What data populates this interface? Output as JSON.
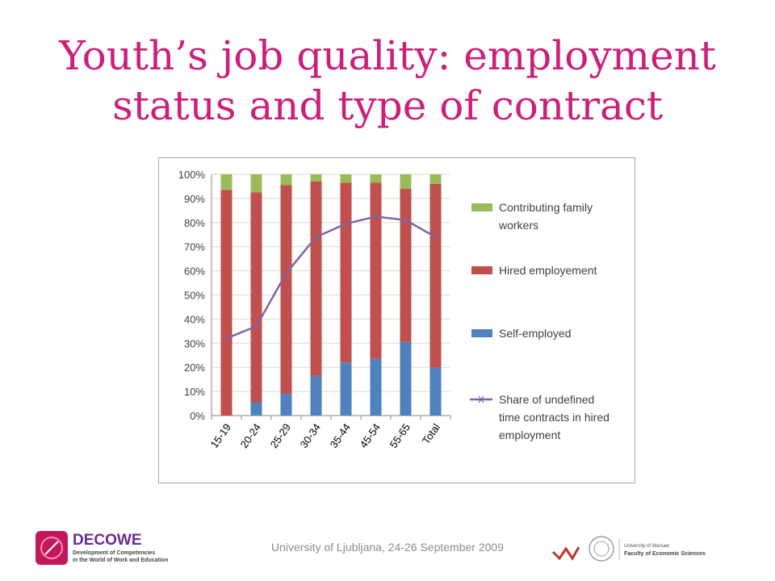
{
  "slide": {
    "title_line1": "Youth’s job quality: employment",
    "title_line2": "status and type of contract",
    "footer": "University of Ljubljana, 24-26 September 2009"
  },
  "logos": {
    "left_name": "DECOWE",
    "left_sub1": "Development of Competencies",
    "left_sub2": "in the World of Work and Education",
    "right_line1": "University of Warsaw",
    "right_line2": "Faculty of Economic Sciences"
  },
  "colors": {
    "title": "#cc1f7a",
    "self_employed": "#4f81bd",
    "hired": "#c0504d",
    "family": "#9bbb59",
    "line": "#8064a2"
  },
  "chart_data": {
    "type": "bar",
    "stacked": true,
    "categories": [
      "15-19",
      "20-24",
      "25-29",
      "30-34",
      "35-44",
      "45-54",
      "55-65",
      "Total"
    ],
    "series": [
      {
        "name": "Self-employed",
        "kind": "bar",
        "values": [
          0,
          5.5,
          9,
          16.5,
          22,
          23.5,
          30.5,
          20
        ]
      },
      {
        "name": "Hired employement",
        "kind": "bar",
        "values": [
          93.5,
          87,
          86.5,
          80.5,
          74.5,
          73,
          63.5,
          76
        ]
      },
      {
        "name": "Contributing family workers",
        "kind": "bar",
        "values": [
          6.5,
          7.5,
          4.5,
          3,
          3.5,
          3.5,
          6,
          4
        ]
      },
      {
        "name": "Share of undefined time contracts in hired employment",
        "kind": "line",
        "values": [
          32,
          37,
          59,
          74,
          79.5,
          82.5,
          81,
          74
        ]
      }
    ],
    "ylim": [
      0,
      100
    ],
    "yticks": [
      "0%",
      "10%",
      "20%",
      "30%",
      "40%",
      "50%",
      "60%",
      "70%",
      "80%",
      "90%",
      "100%"
    ],
    "legend_position": "right",
    "legend": [
      {
        "label_lines": [
          "Contributing family",
          "workers"
        ],
        "series": "family"
      },
      {
        "label_lines": [
          "Hired employement"
        ],
        "series": "hired"
      },
      {
        "label_lines": [
          "Self-employed"
        ],
        "series": "self"
      },
      {
        "label_lines": [
          "Share of undefined",
          "time contracts in hired",
          "employment"
        ],
        "series": "line"
      }
    ]
  }
}
